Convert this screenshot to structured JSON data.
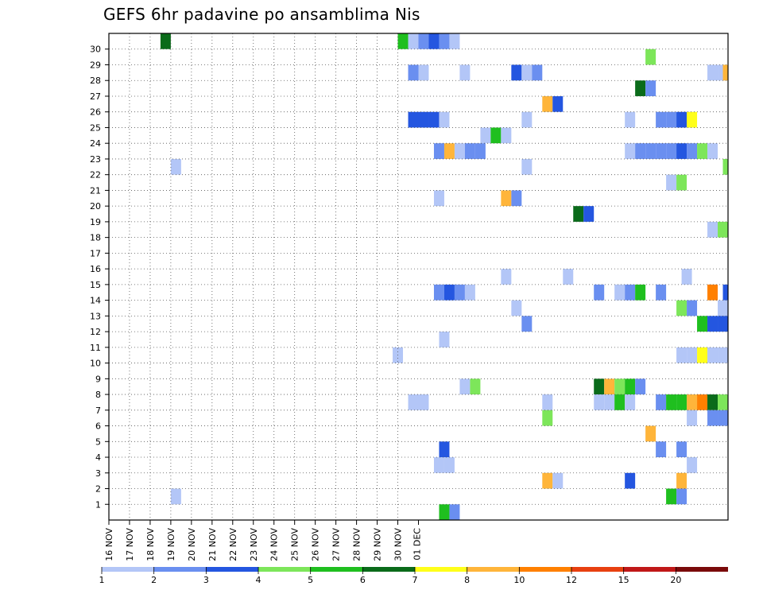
{
  "title": "GEFS 6hr padavine po ansamblima Nis",
  "chart_data": {
    "type": "heatmap",
    "title": "GEFS 6hr padavine po ansamblima Nis",
    "x_tick_labels": [
      "16 NOV",
      "17 NOV",
      "18 NOV",
      "19 NOV",
      "20 NOV",
      "21 NOV",
      "22 NOV",
      "23 NOV",
      "24 NOV",
      "25 NOV",
      "26 NOV",
      "27 NOV",
      "28 NOV",
      "29 NOV",
      "30 NOV",
      "01 DEC"
    ],
    "y_tick_labels": [
      1,
      2,
      3,
      4,
      5,
      6,
      7,
      8,
      9,
      10,
      11,
      12,
      13,
      14,
      15,
      16,
      17,
      18,
      19,
      20,
      21,
      22,
      23,
      24,
      25,
      26,
      27,
      28,
      29,
      30
    ],
    "x_range": [
      "16 NOV 00Z",
      "01 DEC 00Z"
    ],
    "x_step": "6hr",
    "y_range": [
      0,
      30
    ],
    "grid": true,
    "colorbar": {
      "labels": [
        "1",
        "2",
        "3",
        "4",
        "5",
        "6",
        "7",
        "8",
        "10",
        "12",
        "15",
        "20"
      ],
      "colors": [
        "#b3c6f7",
        "#6a8ff0",
        "#2456e0",
        "#7de65a",
        "#1fbf1f",
        "#0a6b1a",
        "#ffff1a",
        "#ffb53a",
        "#ff8000",
        "#e84010",
        "#c01818",
        "#7a0a0a"
      ]
    },
    "cells": [
      {
        "member": 30,
        "steps": [
          [
            10,
            5
          ],
          [
            56,
            4
          ],
          [
            58,
            0
          ],
          [
            60,
            1
          ],
          [
            62,
            2
          ],
          [
            64,
            1
          ],
          [
            66,
            0
          ]
        ]
      },
      {
        "member": 29,
        "steps": [
          [
            104,
            3
          ]
        ]
      },
      {
        "member": 28,
        "steps": [
          [
            58,
            1
          ],
          [
            60,
            0
          ],
          [
            68,
            0
          ],
          [
            78,
            2
          ],
          [
            80,
            0
          ],
          [
            82,
            1
          ],
          [
            116,
            0
          ],
          [
            118,
            0
          ],
          [
            119,
            7
          ]
        ]
      },
      {
        "member": 27,
        "steps": [
          [
            102,
            5
          ],
          [
            104,
            1
          ]
        ]
      },
      {
        "member": 26,
        "steps": [
          [
            84,
            7
          ],
          [
            86,
            2
          ]
        ]
      },
      {
        "member": 25,
        "steps": [
          [
            58,
            2
          ],
          [
            60,
            2
          ],
          [
            62,
            2
          ],
          [
            64,
            0
          ],
          [
            80,
            0
          ],
          [
            100,
            0
          ],
          [
            106,
            1
          ],
          [
            108,
            1
          ],
          [
            110,
            2
          ],
          [
            112,
            6
          ]
        ]
      },
      {
        "member": 24,
        "steps": [
          [
            72,
            0
          ],
          [
            74,
            4
          ],
          [
            76,
            0
          ]
        ]
      },
      {
        "member": 23,
        "steps": [
          [
            63,
            1
          ],
          [
            65,
            7
          ],
          [
            67,
            0
          ],
          [
            69,
            1
          ],
          [
            71,
            1
          ],
          [
            100,
            0
          ],
          [
            102,
            1
          ],
          [
            104,
            1
          ],
          [
            106,
            1
          ],
          [
            108,
            1
          ],
          [
            110,
            2
          ],
          [
            112,
            1
          ],
          [
            114,
            3
          ],
          [
            116,
            0
          ]
        ]
      },
      {
        "member": 22,
        "steps": [
          [
            12,
            0
          ],
          [
            80,
            0
          ],
          [
            119,
            3
          ]
        ]
      },
      {
        "member": 21,
        "steps": [
          [
            108,
            0
          ],
          [
            110,
            3
          ]
        ]
      },
      {
        "member": 20,
        "steps": [
          [
            63,
            0
          ],
          [
            76,
            7
          ],
          [
            78,
            1
          ]
        ]
      },
      {
        "member": 19,
        "steps": [
          [
            90,
            5
          ],
          [
            92,
            2
          ]
        ]
      },
      {
        "member": 18,
        "steps": [
          [
            116,
            0
          ],
          [
            118,
            3
          ]
        ]
      },
      {
        "member": 17,
        "steps": []
      },
      {
        "member": 16,
        "steps": []
      },
      {
        "member": 15,
        "steps": [
          [
            76,
            0
          ],
          [
            88,
            0
          ],
          [
            111,
            0
          ]
        ]
      },
      {
        "member": 14,
        "steps": [
          [
            63,
            1
          ],
          [
            65,
            2
          ],
          [
            67,
            1
          ],
          [
            69,
            0
          ],
          [
            94,
            1
          ],
          [
            98,
            0
          ],
          [
            100,
            1
          ],
          [
            102,
            4
          ],
          [
            106,
            1
          ],
          [
            116,
            8
          ],
          [
            119,
            2
          ]
        ]
      },
      {
        "member": 13,
        "steps": [
          [
            78,
            0
          ],
          [
            110,
            3
          ],
          [
            112,
            1
          ],
          [
            118,
            0
          ]
        ]
      },
      {
        "member": 12,
        "steps": [
          [
            80,
            1
          ],
          [
            114,
            4
          ],
          [
            116,
            2
          ],
          [
            118,
            2
          ]
        ]
      },
      {
        "member": 11,
        "steps": [
          [
            64,
            0
          ]
        ]
      },
      {
        "member": 10,
        "steps": [
          [
            55,
            0
          ],
          [
            110,
            0
          ],
          [
            112,
            0
          ],
          [
            114,
            6
          ],
          [
            116,
            0
          ],
          [
            118,
            0
          ]
        ]
      },
      {
        "member": 9,
        "steps": []
      },
      {
        "member": 8,
        "steps": [
          [
            68,
            0
          ],
          [
            70,
            3
          ],
          [
            94,
            5
          ],
          [
            96,
            7
          ],
          [
            98,
            3
          ],
          [
            100,
            4
          ],
          [
            102,
            1
          ]
        ]
      },
      {
        "member": 7,
        "steps": [
          [
            58,
            0
          ],
          [
            60,
            0
          ],
          [
            84,
            0
          ],
          [
            94,
            0
          ],
          [
            96,
            0
          ],
          [
            98,
            4
          ],
          [
            100,
            0
          ],
          [
            106,
            1
          ],
          [
            108,
            4
          ],
          [
            110,
            4
          ],
          [
            112,
            7
          ],
          [
            114,
            8
          ],
          [
            116,
            5
          ],
          [
            118,
            3
          ]
        ]
      },
      {
        "member": 6,
        "steps": [
          [
            84,
            3
          ],
          [
            112,
            0
          ],
          [
            116,
            1
          ],
          [
            118,
            1
          ]
        ]
      },
      {
        "member": 5,
        "steps": [
          [
            104,
            7
          ]
        ]
      },
      {
        "member": 4,
        "steps": [
          [
            64,
            2
          ],
          [
            106,
            1
          ],
          [
            110,
            1
          ]
        ]
      },
      {
        "member": 3,
        "steps": [
          [
            63,
            0
          ],
          [
            65,
            0
          ],
          [
            112,
            0
          ]
        ]
      },
      {
        "member": 2,
        "steps": [
          [
            84,
            7
          ],
          [
            86,
            0
          ],
          [
            100,
            2
          ],
          [
            110,
            7
          ]
        ]
      },
      {
        "member": 1,
        "steps": [
          [
            12,
            0
          ],
          [
            108,
            4
          ],
          [
            110,
            1
          ]
        ]
      },
      {
        "member": 0,
        "steps": [
          [
            64,
            4
          ],
          [
            66,
            1
          ]
        ]
      }
    ]
  }
}
